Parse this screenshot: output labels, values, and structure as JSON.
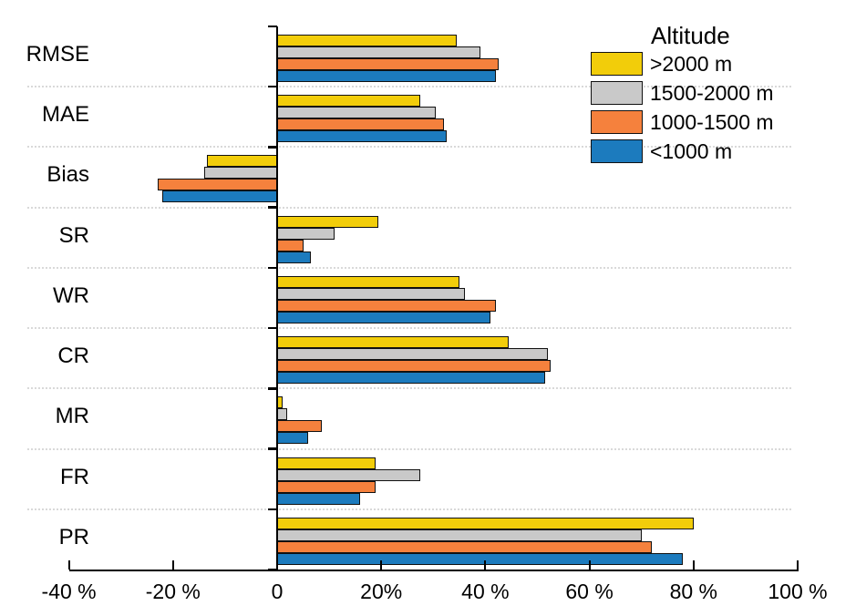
{
  "chart_data": {
    "type": "bar",
    "orientation": "horizontal",
    "title": "",
    "xlabel": "",
    "ylabel": "",
    "categories": [
      "RMSE",
      "MAE",
      "Bias",
      "SR",
      "WR",
      "CR",
      "MR",
      "FR",
      "PR"
    ],
    "series": [
      {
        "name": ">2000 m",
        "color": "#f2cd0a",
        "values": [
          34.5,
          27.5,
          -13.5,
          19.5,
          35.0,
          44.5,
          1.0,
          19.0,
          80.0
        ]
      },
      {
        "name": "1500-2000 m",
        "color": "#c9c9c9",
        "values": [
          39.0,
          30.5,
          -14.0,
          11.0,
          36.0,
          52.0,
          2.0,
          27.5,
          70.0
        ]
      },
      {
        "name": "1000-1500 m",
        "color": "#f5813d",
        "values": [
          42.5,
          32.0,
          -23.0,
          5.0,
          42.0,
          52.5,
          8.5,
          19.0,
          72.0
        ]
      },
      {
        "name": "<1000 m",
        "color": "#1c7bbe",
        "values": [
          42.0,
          32.5,
          -22.0,
          6.5,
          41.0,
          51.5,
          6.0,
          16.0,
          78.0
        ]
      }
    ],
    "legend_title": "Altitude",
    "legend_position": "top-right",
    "xlim": [
      -40,
      100
    ],
    "x_ticks": [
      -40,
      -20,
      0,
      20,
      40,
      60,
      80,
      100
    ],
    "x_tick_labels": [
      "-40 %",
      "-20 %",
      "0",
      "20%",
      "40 %",
      "60 %",
      "80 %",
      "100 %"
    ],
    "grid": "dashed horizontal lines between category groups",
    "axis_color": "#000000",
    "gridline_color": "#d9d9d9",
    "bar_outline_color": "#111111"
  }
}
